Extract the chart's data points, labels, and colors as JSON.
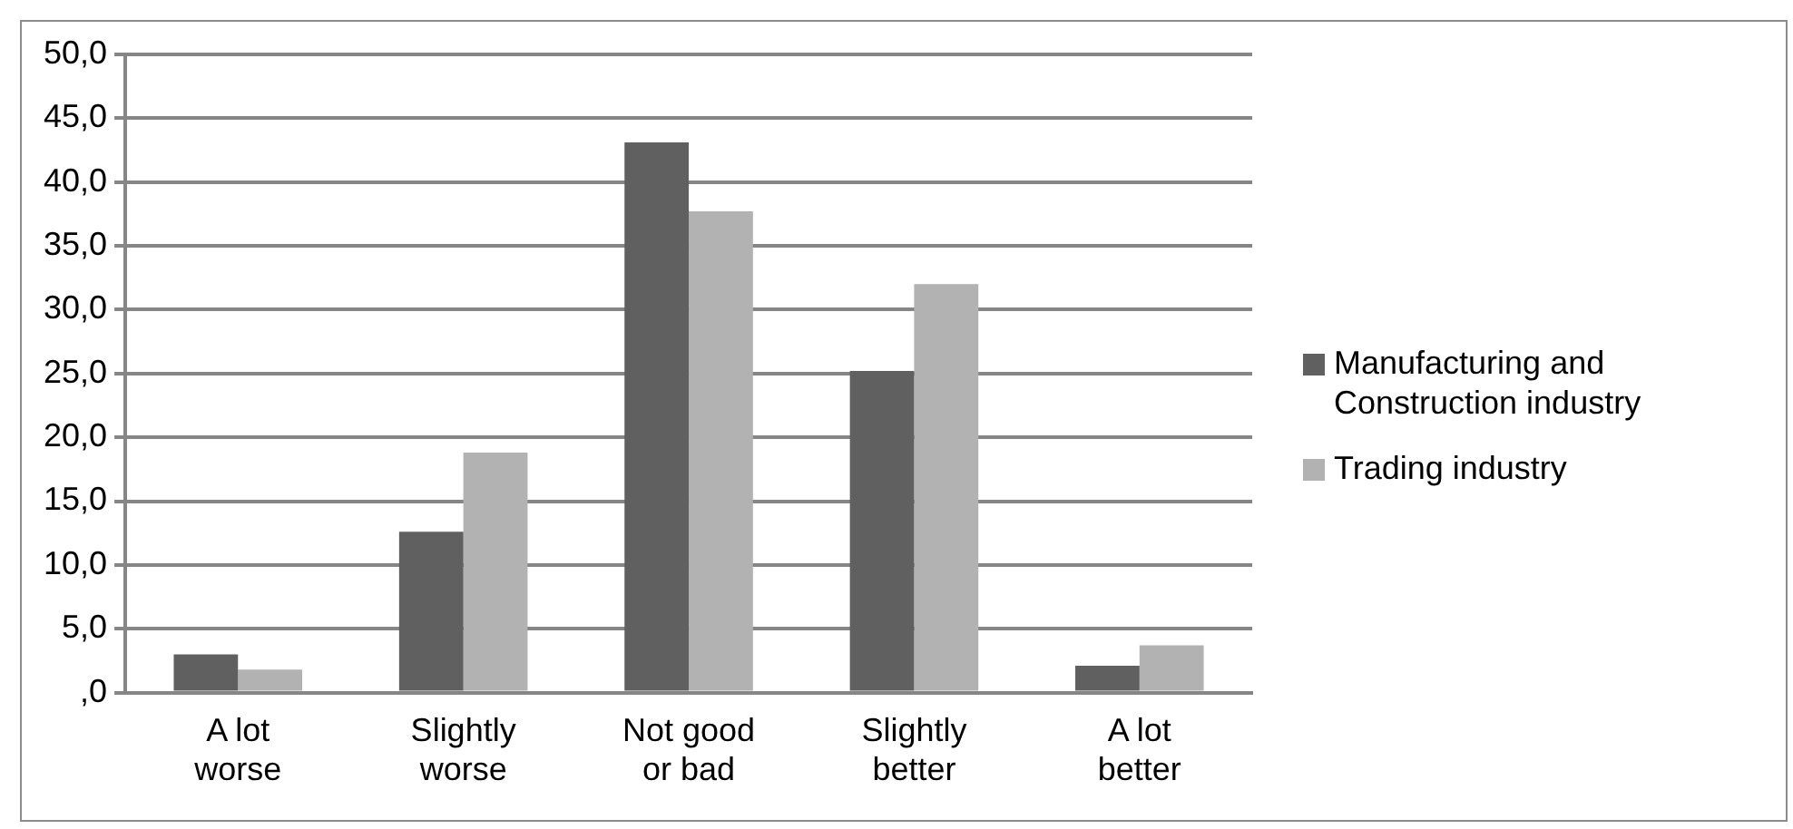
{
  "chart_data": {
    "type": "bar",
    "categories": [
      "A lot worse",
      "Slightly worse",
      "Not good or bad",
      "Slightly better",
      "A lot better"
    ],
    "series": [
      {
        "name": "Manufacturing and Construction industry",
        "color": "#606060",
        "values": [
          3.0,
          12.6,
          43.1,
          25.2,
          2.1
        ]
      },
      {
        "name": "Trading industry",
        "color": "#b2b2b2",
        "values": [
          1.8,
          18.8,
          37.7,
          32.0,
          3.7
        ]
      }
    ],
    "ylim": [
      0,
      50
    ],
    "yticks": [
      {
        "value": 0,
        "label": ",0"
      },
      {
        "value": 5,
        "label": "5,0"
      },
      {
        "value": 10,
        "label": "10,0"
      },
      {
        "value": 15,
        "label": "15,0"
      },
      {
        "value": 20,
        "label": "20,0"
      },
      {
        "value": 25,
        "label": "25,0"
      },
      {
        "value": 30,
        "label": "30,0"
      },
      {
        "value": 35,
        "label": "35,0"
      },
      {
        "value": 40,
        "label": "40,0"
      },
      {
        "value": 45,
        "label": "45,0"
      },
      {
        "value": 50,
        "label": "50,0"
      }
    ],
    "grid": "y",
    "legend": "right"
  }
}
